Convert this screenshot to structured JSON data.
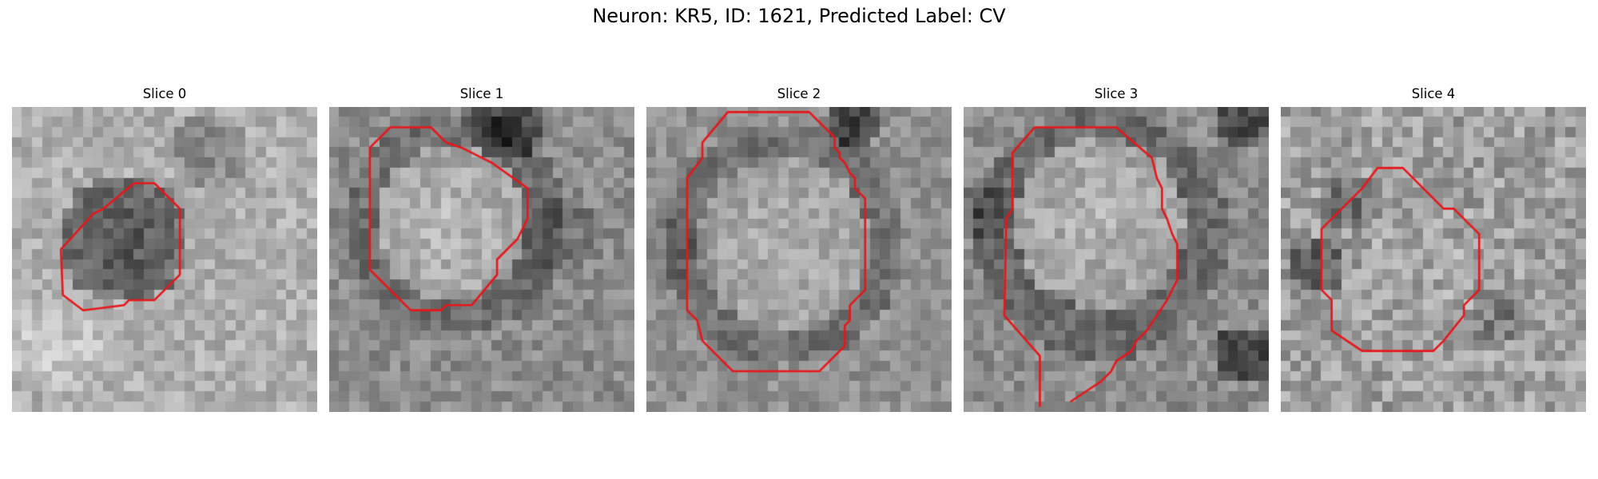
{
  "figure": {
    "title": "Neuron: KR5, ID: 1621, Predicted Label: CV"
  },
  "contour_color": "#e8161a",
  "grid_size": 30,
  "panels": [
    {
      "title": "Slice 0",
      "scene": "dark",
      "contour": [
        [
          9,
          10
        ],
        [
          12,
          7.5
        ],
        [
          14,
          7.5
        ],
        [
          16.5,
          10
        ],
        [
          16.5,
          16.5
        ],
        [
          14,
          19
        ],
        [
          11.5,
          19
        ],
        [
          11,
          19.5
        ],
        [
          7,
          20
        ],
        [
          5,
          18.5
        ],
        [
          4.8,
          14
        ],
        [
          8,
          10.5
        ]
      ]
    },
    {
      "title": "Slice 1",
      "scene": "bright",
      "contour": [
        [
          4,
          4
        ],
        [
          6,
          2
        ],
        [
          10,
          2
        ],
        [
          11.5,
          3.5
        ],
        [
          13,
          4
        ],
        [
          15,
          5
        ],
        [
          16,
          5.5
        ],
        [
          19.5,
          8
        ],
        [
          19.5,
          11
        ],
        [
          18.5,
          13
        ],
        [
          16.5,
          15
        ],
        [
          16.5,
          16.5
        ],
        [
          14,
          19.5
        ],
        [
          11.5,
          19.5
        ],
        [
          11,
          20
        ],
        [
          8,
          20
        ],
        [
          5,
          17
        ],
        [
          4,
          16
        ],
        [
          4,
          12
        ]
      ]
    },
    {
      "title": "Slice 2",
      "scene": "bright",
      "contour": [
        [
          8,
          0.5
        ],
        [
          16,
          0.5
        ],
        [
          18.5,
          3
        ],
        [
          18.5,
          4
        ],
        [
          19,
          4.5
        ],
        [
          19,
          5
        ],
        [
          19.5,
          5.5
        ],
        [
          20,
          6.5
        ],
        [
          20.5,
          7
        ],
        [
          20.5,
          8
        ],
        [
          21.5,
          9
        ],
        [
          21.5,
          18
        ],
        [
          20,
          19.5
        ],
        [
          20,
          21
        ],
        [
          19.5,
          21.5
        ],
        [
          19.5,
          23.5
        ],
        [
          17,
          26
        ],
        [
          8.5,
          26
        ],
        [
          5.5,
          23
        ],
        [
          5,
          21
        ],
        [
          4,
          20
        ],
        [
          4,
          7
        ],
        [
          5.5,
          5
        ],
        [
          5.5,
          3.5
        ]
      ]
    },
    {
      "title": "Slice 3",
      "scene": "bright",
      "contour": [
        [
          7,
          2
        ],
        [
          15,
          2
        ],
        [
          18.5,
          5
        ],
        [
          19,
          7
        ],
        [
          19.5,
          8
        ],
        [
          19.5,
          10
        ],
        [
          20,
          11
        ],
        [
          20.5,
          12.5
        ],
        [
          21,
          13.5
        ],
        [
          21,
          17
        ],
        [
          20,
          19
        ],
        [
          18,
          22
        ],
        [
          17,
          23
        ],
        [
          16.5,
          24
        ],
        [
          15,
          25
        ],
        [
          14.5,
          26
        ],
        [
          13.5,
          27
        ],
        [
          12,
          28
        ],
        [
          10.5,
          29
        ]
      ]
    },
    {
      "title": "Slice 4",
      "scene": "mixed",
      "contour": [
        [
          9.5,
          6
        ],
        [
          12,
          6
        ],
        [
          16,
          10
        ],
        [
          17,
          10
        ],
        [
          19.5,
          12.5
        ],
        [
          19.5,
          18
        ],
        [
          18,
          19.5
        ],
        [
          18,
          20.5
        ],
        [
          16,
          23
        ],
        [
          15,
          24
        ],
        [
          8,
          24
        ],
        [
          5,
          22
        ],
        [
          5,
          19
        ],
        [
          4,
          18
        ],
        [
          4,
          12
        ],
        [
          8,
          8
        ]
      ]
    }
  ]
}
